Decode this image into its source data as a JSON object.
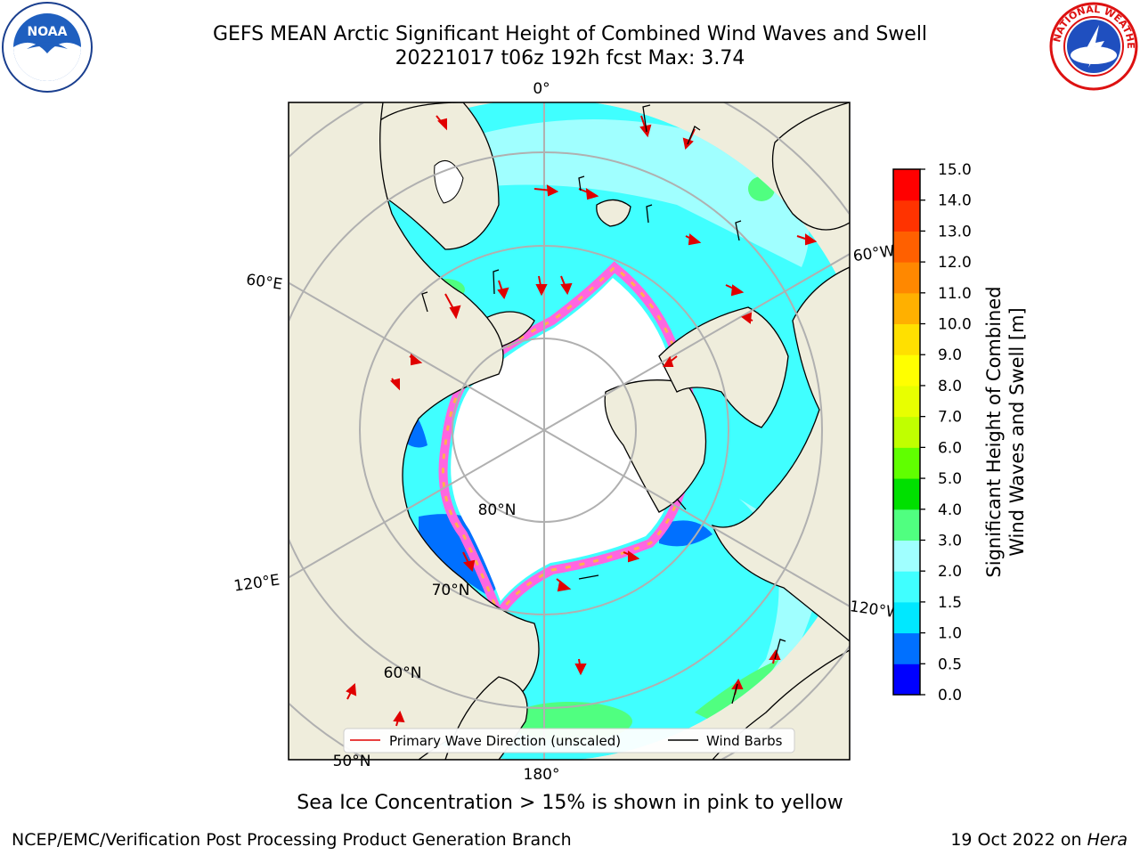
{
  "title": {
    "line1": "GEFS MEAN Arctic Significant Height of Combined Wind Waves and Swell",
    "line2": "20221017 t06z 192h fcst   Max: 3.74"
  },
  "map_labels": {
    "meridian_0": "0°",
    "meridian_60e": "60°E",
    "meridian_60w": "60°W",
    "meridian_120e": "120°E",
    "meridian_120w": "120°W",
    "meridian_180": "180°",
    "lat_80": "80°N",
    "lat_70": "70°N",
    "lat_60": "60°N",
    "lat_50": "50°N"
  },
  "legend": {
    "primary_wave": "Primary Wave Direction (unscaled)",
    "wind_barbs": "Wind Barbs"
  },
  "colorbar": {
    "label_line1": "Significant Height of Combined",
    "label_line2": "Wind Waves and Swell [m]",
    "ticks": [
      "0.0",
      "0.5",
      "1.0",
      "1.5",
      "2.0",
      "3.0",
      "4.0",
      "5.0",
      "6.0",
      "7.0",
      "8.0",
      "9.0",
      "10.0",
      "11.0",
      "12.0",
      "13.0",
      "14.0",
      "15.0"
    ],
    "colors": [
      "#0000ff",
      "#0070ff",
      "#00e8ff",
      "#40ffff",
      "#a0ffff",
      "#50ff80",
      "#00e000",
      "#60ff00",
      "#c0ff00",
      "#e8ff00",
      "#ffff00",
      "#ffe000",
      "#ffb000",
      "#ff8800",
      "#ff6000",
      "#ff3300",
      "#ff0000"
    ]
  },
  "footer": {
    "ice_note": "Sea Ice Concentration > 15% is shown in pink to yellow",
    "credit": "NCEP/EMC/Verification Post Processing Product Generation Branch",
    "date": "19 Oct 2022 on ",
    "machine": "Hera"
  },
  "logos": {
    "noaa_text": "NOAA",
    "nws_text": "NATIONAL WEATHER SERVICE"
  }
}
